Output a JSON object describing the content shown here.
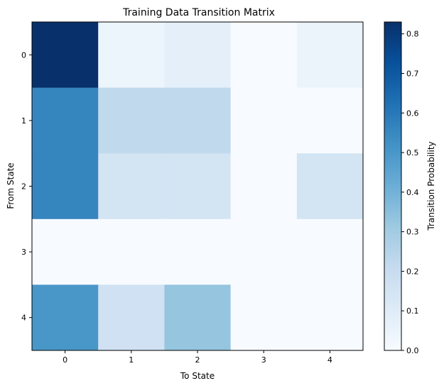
{
  "chart_data": {
    "type": "heatmap",
    "title": "Training Data Transition Matrix",
    "xlabel": "To State",
    "ylabel": "From State",
    "x_categories": [
      "0",
      "1",
      "2",
      "3",
      "4"
    ],
    "y_categories": [
      "0",
      "1",
      "2",
      "3",
      "4"
    ],
    "values": [
      [
        0.83,
        0.04,
        0.08,
        0.0,
        0.05
      ],
      [
        0.56,
        0.22,
        0.22,
        0.0,
        0.0
      ],
      [
        0.56,
        0.15,
        0.15,
        0.0,
        0.15
      ],
      [
        0.0,
        0.0,
        0.0,
        0.0,
        0.0
      ],
      [
        0.5,
        0.17,
        0.33,
        0.0,
        0.0
      ]
    ],
    "colormap": "Blues",
    "vmin": 0.0,
    "vmax": 0.83,
    "colorbar": {
      "label": "Transition Probability",
      "ticks": [
        "0.0",
        "0.1",
        "0.2",
        "0.3",
        "0.4",
        "0.5",
        "0.6",
        "0.7",
        "0.8"
      ]
    }
  }
}
